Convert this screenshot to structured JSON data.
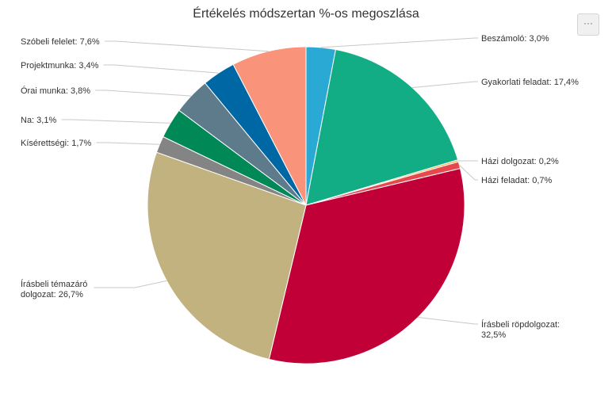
{
  "chart_data": {
    "type": "pie",
    "title": "Értékelés módszertan %-os megoszlása",
    "unit": "%",
    "slices": [
      {
        "name": "Beszámoló",
        "value": 3.0,
        "label": "Beszámoló: 3,0%",
        "color": "#29a9d3"
      },
      {
        "name": "Gyakorlati feladat",
        "value": 17.4,
        "label": "Gyakorlati feladat: 17,4%",
        "color": "#12ad84"
      },
      {
        "name": "Házi dolgozat",
        "value": 0.2,
        "label": "Házi dolgozat: 0,2%",
        "color": "#f5b342"
      },
      {
        "name": "Házi feladat",
        "value": 0.7,
        "label": "Házi feladat: 0,7%",
        "color": "#e5484d"
      },
      {
        "name": "Írásbeli röpdolgozat",
        "value": 32.5,
        "label": "Írásbeli röpdolgozat:\n32,5%",
        "color": "#c00037"
      },
      {
        "name": "Írásbeli témazáró dolgozat",
        "value": 26.7,
        "label": "Írásbeli témazáró\ndolgozat: 26,7%",
        "color": "#c2b280"
      },
      {
        "name": "Kísérettségi",
        "value": 1.7,
        "label": "Kísérettségi: 1,7%",
        "color": "#848484"
      },
      {
        "name": "Na",
        "value": 3.1,
        "label": "Na: 3,1%",
        "color": "#008856"
      },
      {
        "name": "Órai munka",
        "value": 3.8,
        "label": "Órai munka: 3,8%",
        "color": "#5d7b8a"
      },
      {
        "name": "Projektmunka",
        "value": 3.4,
        "label": "Projektmunka: 3,4%",
        "color": "#0067a5"
      },
      {
        "name": "Szóbeli felelet",
        "value": 7.6,
        "label": "Szóbeli felelet: 7,6%",
        "color": "#f99379"
      }
    ],
    "start_angle_deg": 0,
    "direction": "clockwise"
  },
  "menu": {
    "glyph": "···"
  }
}
